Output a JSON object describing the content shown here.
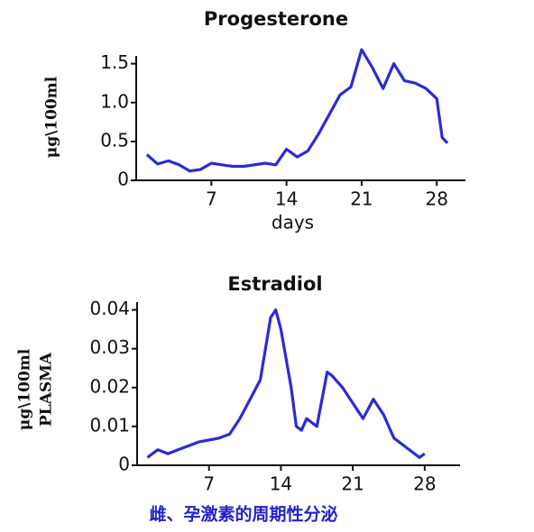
{
  "chart_data": [
    {
      "type": "line",
      "title": "Progesterone",
      "xlabel": "days",
      "ylabel": [
        "μg\\100ml"
      ],
      "x": [
        1,
        2,
        3,
        4,
        5,
        6,
        7,
        8,
        9,
        10,
        11,
        12,
        13,
        14,
        15,
        16,
        17,
        18,
        19,
        20,
        21,
        22,
        23,
        24,
        25,
        26,
        27,
        28,
        28.5,
        29
      ],
      "values": [
        0.33,
        0.21,
        0.25,
        0.2,
        0.12,
        0.14,
        0.22,
        0.2,
        0.18,
        0.18,
        0.2,
        0.22,
        0.2,
        0.4,
        0.3,
        0.38,
        0.6,
        0.85,
        1.1,
        1.2,
        1.68,
        1.45,
        1.18,
        1.5,
        1.28,
        1.25,
        1.18,
        1.05,
        0.55,
        0.48
      ],
      "color": "#2b2bd6",
      "xlim": [
        0,
        30.5
      ],
      "xticks": [
        7,
        14,
        21,
        28
      ],
      "ylim": [
        0,
        1.6
      ],
      "yticks": [
        0,
        0.5,
        {
          "value": 1,
          "label": "1.0"
        },
        1.5
      ]
    },
    {
      "type": "line",
      "title": "Estradiol",
      "ylabel": [
        "μg\\100ml",
        "PLASMA"
      ],
      "x": [
        1,
        2,
        3,
        4,
        5,
        6,
        7,
        8,
        9,
        10,
        11,
        12,
        13,
        13.5,
        14,
        15,
        15.5,
        16,
        16.5,
        17,
        17.5,
        18.5,
        19,
        20,
        21,
        22,
        23,
        24,
        25,
        26,
        27,
        27.5,
        28
      ],
      "values": [
        0.002,
        0.004,
        0.003,
        0.004,
        0.005,
        0.006,
        0.0065,
        0.007,
        0.008,
        0.012,
        0.017,
        0.022,
        0.038,
        0.04,
        0.035,
        0.02,
        0.01,
        0.009,
        0.012,
        0.011,
        0.01,
        0.024,
        0.023,
        0.02,
        0.016,
        0.012,
        0.017,
        0.013,
        0.007,
        0.005,
        0.003,
        0.002,
        0.003
      ],
      "color": "#2b2bd6",
      "xlim": [
        0,
        31
      ],
      "xticks": [
        7,
        14,
        21,
        28
      ],
      "ylim": [
        0,
        0.042
      ],
      "yticks": [
        0,
        0.01,
        0.02,
        0.03,
        0.04
      ]
    }
  ],
  "caption": "雌、孕激素的周期性分泌"
}
